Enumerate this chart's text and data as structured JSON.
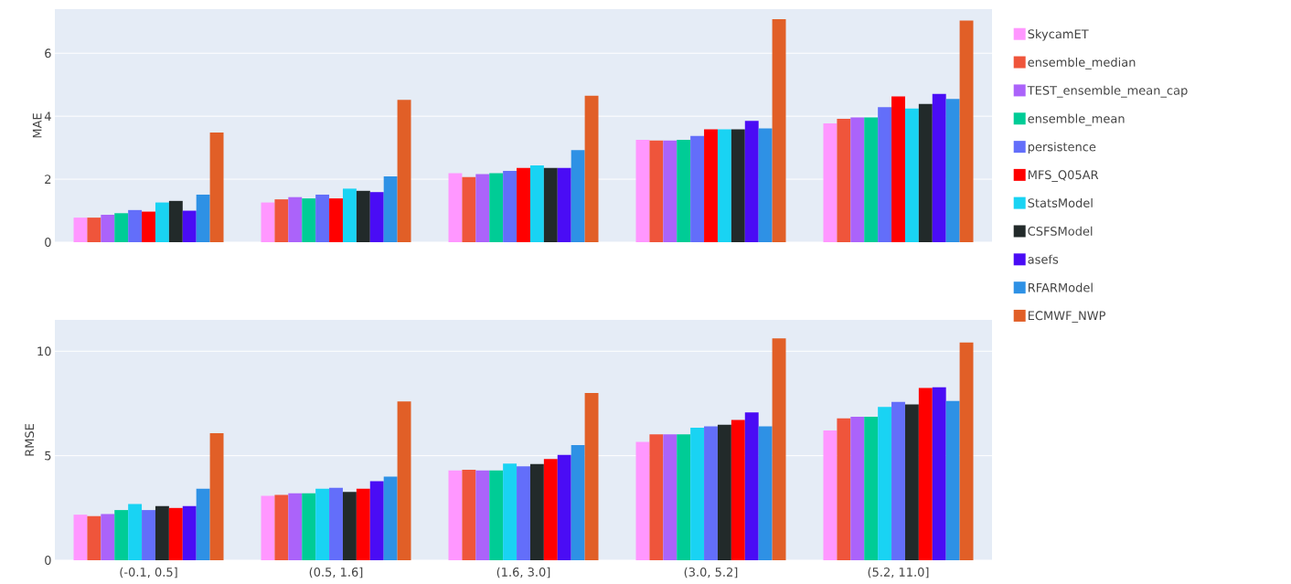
{
  "chart_data": [
    {
      "type": "bar",
      "ylabel": "MAE",
      "categories": [
        null,
        null,
        null,
        null,
        null
      ],
      "ylim": [
        0,
        7.4
      ],
      "yticks": [
        0,
        2,
        4,
        6
      ],
      "grid": "y",
      "tick_labels": "y",
      "legend": "right",
      "series": [
        {
          "name": "SkycamET",
          "color": "#ff97ff",
          "values": [
            0.78,
            1.26,
            2.19,
            3.25,
            3.77
          ]
        },
        {
          "name": "ensemble_median",
          "color": "#ef553b",
          "values": [
            0.78,
            1.36,
            2.07,
            3.23,
            3.92
          ]
        },
        {
          "name": "TEST_ensemble_mean_cap",
          "color": "#ab63fa",
          "values": [
            0.87,
            1.43,
            2.16,
            3.23,
            3.96
          ]
        },
        {
          "name": "ensemble_mean",
          "color": "#00cc96",
          "values": [
            0.92,
            1.39,
            2.19,
            3.25,
            3.96
          ]
        },
        {
          "name": "persistence",
          "color": "#636efa",
          "values": [
            1.02,
            1.51,
            2.26,
            3.37,
            4.29
          ]
        },
        {
          "name": "MFS_Q05AR",
          "color": "#ff0000",
          "values": [
            0.97,
            1.39,
            2.36,
            3.58,
            4.63
          ]
        },
        {
          "name": "StatsModel",
          "color": "#19d3f3",
          "values": [
            1.26,
            1.7,
            2.44,
            3.58,
            4.24
          ]
        },
        {
          "name": "CSFSModel",
          "color": "#222a2a",
          "values": [
            1.31,
            1.63,
            2.36,
            3.58,
            4.39
          ]
        },
        {
          "name": "asefs",
          "color": "#4a0cf5",
          "values": [
            1.0,
            1.59,
            2.36,
            3.85,
            4.71
          ]
        },
        {
          "name": "RFARModel",
          "color": "#2e91e5",
          "values": [
            1.51,
            2.09,
            2.92,
            3.61,
            4.55
          ]
        },
        {
          "name": "ECMWF_NWP",
          "color": "#e15f27",
          "values": [
            3.48,
            4.52,
            4.65,
            7.08,
            7.04
          ]
        }
      ]
    },
    {
      "type": "bar",
      "ylabel": "RMSE",
      "categories": [
        "(-0.1, 0.5]",
        "(0.5, 1.6]",
        "(1.6, 3.0]",
        "(3.0, 5.2]",
        "(5.2, 11.0]"
      ],
      "ylim": [
        0,
        11.5
      ],
      "yticks": [
        0,
        5,
        10
      ],
      "grid": "y",
      "series": [
        {
          "color": "#ff97ff",
          "values": [
            2.18,
            3.08,
            4.29,
            5.66,
            6.21
          ]
        },
        {
          "color": "#ef553b",
          "values": [
            2.11,
            3.13,
            4.33,
            6.02,
            6.79
          ]
        },
        {
          "color": "#ab63fa",
          "values": [
            2.21,
            3.2,
            4.29,
            6.02,
            6.86
          ]
        },
        {
          "color": "#00cc96",
          "values": [
            2.4,
            3.2,
            4.29,
            6.02,
            6.86
          ]
        },
        {
          "color": "#19d3f3",
          "values": [
            2.69,
            3.42,
            4.62,
            6.34,
            7.33
          ]
        },
        {
          "color": "#636efa",
          "values": [
            2.4,
            3.46,
            4.49,
            6.4,
            7.57
          ]
        },
        {
          "color": "#222a2a",
          "values": [
            2.59,
            3.27,
            4.6,
            6.48,
            7.46
          ]
        },
        {
          "color": "#ff0000",
          "values": [
            2.5,
            3.42,
            4.84,
            6.71,
            8.24
          ]
        },
        {
          "color": "#4a0cf5",
          "values": [
            2.59,
            3.78,
            5.04,
            7.07,
            8.27
          ]
        },
        {
          "color": "#2e91e5",
          "values": [
            3.42,
            4.0,
            5.51,
            6.4,
            7.62
          ]
        },
        {
          "color": "#e15f27",
          "values": [
            6.08,
            7.6,
            8.0,
            10.61,
            10.42
          ]
        }
      ]
    }
  ]
}
